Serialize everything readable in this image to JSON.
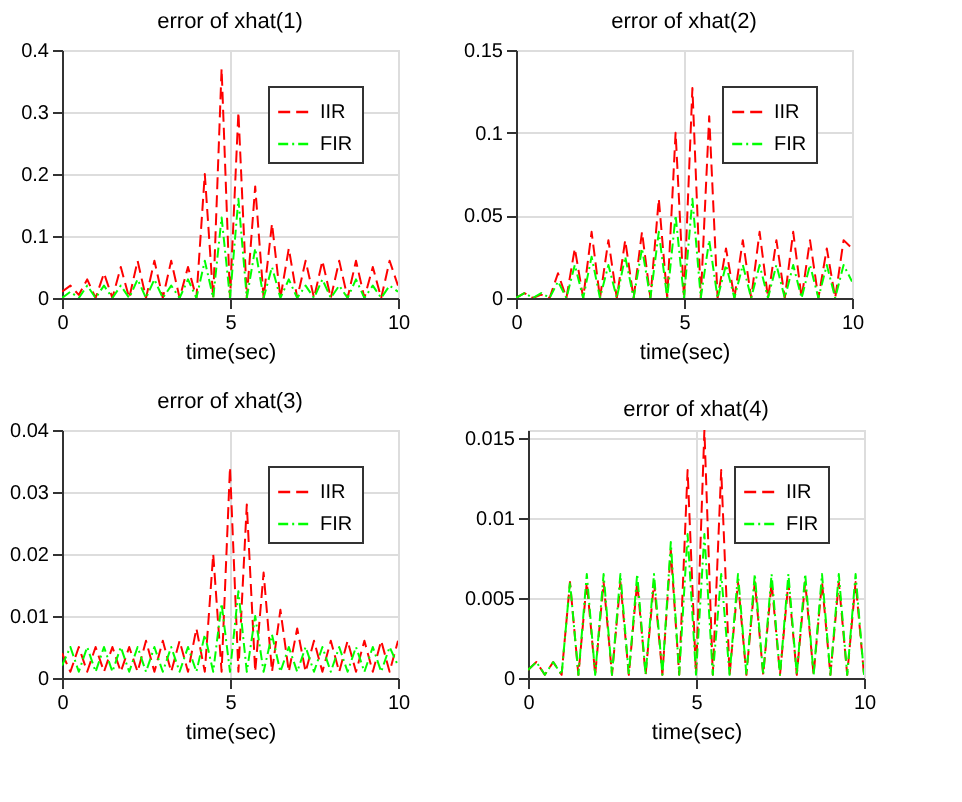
{
  "chart_data": [
    {
      "type": "line",
      "title": "error of xhat(1)",
      "xlabel": "time(sec)",
      "xlim": [
        0,
        10
      ],
      "xticks": [
        0,
        5,
        10
      ],
      "ylim": [
        0,
        0.4
      ],
      "yticks": [
        0,
        0.1,
        0.2,
        0.3,
        0.4
      ],
      "grid": true,
      "legend": "top right",
      "x": [
        0,
        0.25,
        0.5,
        0.75,
        1,
        1.25,
        1.5,
        1.75,
        2,
        2.25,
        2.5,
        2.75,
        3,
        3.25,
        3.5,
        3.75,
        4,
        4.25,
        4.5,
        4.75,
        5,
        5.25,
        5.5,
        5.75,
        6,
        6.25,
        6.5,
        6.75,
        7,
        7.25,
        7.5,
        7.75,
        8,
        8.25,
        8.5,
        8.75,
        9,
        9.25,
        9.5,
        9.75,
        10
      ],
      "series": [
        {
          "name": "IIR",
          "color": "#ff0000",
          "line_style": "dashed",
          "values": [
            0.01,
            0.02,
            0.005,
            0.03,
            0,
            0.04,
            0,
            0.05,
            0,
            0.06,
            0,
            0.06,
            0,
            0.06,
            0,
            0.05,
            0,
            0.2,
            0,
            0.37,
            0,
            0.3,
            0,
            0.18,
            0,
            0.12,
            0,
            0.08,
            0,
            0.06,
            0,
            0.06,
            0,
            0.06,
            0,
            0.06,
            0,
            0.05,
            0,
            0.06,
            0.02
          ]
        },
        {
          "name": "FIR",
          "color": "#00ff00",
          "line_style": "dotted",
          "values": [
            0,
            0.01,
            0,
            0.02,
            0,
            0.02,
            0,
            0.02,
            0,
            0.03,
            0,
            0.03,
            0,
            0.02,
            0,
            0.03,
            0,
            0.06,
            0,
            0.13,
            0,
            0.16,
            0,
            0.08,
            0,
            0.05,
            0,
            0.03,
            0,
            0.02,
            0,
            0.03,
            0,
            0.02,
            0,
            0.03,
            0,
            0.02,
            0,
            0.02,
            0.01
          ]
        }
      ]
    },
    {
      "type": "line",
      "title": "error of xhat(2)",
      "xlabel": "time(sec)",
      "xlim": [
        0,
        10
      ],
      "xticks": [
        0,
        5,
        10
      ],
      "ylim": [
        0,
        0.15
      ],
      "yticks": [
        0,
        0.05,
        0.1,
        0.15
      ],
      "grid": true,
      "legend": "top right",
      "x": [
        0,
        0.25,
        0.5,
        0.75,
        1,
        1.25,
        1.5,
        1.75,
        2,
        2.25,
        2.5,
        2.75,
        3,
        3.25,
        3.5,
        3.75,
        4,
        4.25,
        4.5,
        4.75,
        5,
        5.25,
        5.5,
        5.75,
        6,
        6.25,
        6.5,
        6.75,
        7,
        7.25,
        7.5,
        7.75,
        8,
        8.25,
        8.5,
        8.75,
        9,
        9.25,
        9.5,
        9.75,
        10
      ],
      "series": [
        {
          "name": "IIR",
          "color": "#ff0000",
          "line_style": "dashed",
          "values": [
            0,
            0.003,
            0,
            0.002,
            0,
            0.015,
            0,
            0.03,
            0,
            0.04,
            0,
            0.035,
            0,
            0.035,
            0,
            0.04,
            0,
            0.06,
            0,
            0.1,
            0,
            0.127,
            0,
            0.11,
            0,
            0.03,
            0,
            0.035,
            0,
            0.04,
            0,
            0.035,
            0,
            0.04,
            0,
            0.035,
            0,
            0.03,
            0,
            0.035,
            0.03
          ]
        },
        {
          "name": "FIR",
          "color": "#00ff00",
          "line_style": "dotted",
          "values": [
            0,
            0.003,
            0,
            0.003,
            0,
            0.01,
            0,
            0.02,
            0,
            0.025,
            0,
            0.02,
            0,
            0.025,
            0,
            0.03,
            0,
            0.04,
            0,
            0.05,
            0,
            0.06,
            0,
            0.035,
            0,
            0.02,
            0,
            0.02,
            0,
            0.02,
            0,
            0.02,
            0,
            0.02,
            0,
            0.02,
            0,
            0.02,
            0,
            0.02,
            0.01
          ]
        }
      ]
    },
    {
      "type": "line",
      "title": "error of xhat(3)",
      "xlabel": "time(sec)",
      "xlim": [
        0,
        10
      ],
      "xticks": [
        0,
        5,
        10
      ],
      "ylim": [
        0,
        0.04
      ],
      "yticks": [
        0,
        0.01,
        0.02,
        0.03,
        0.04
      ],
      "grid": true,
      "legend": "top right",
      "x": [
        0,
        0.25,
        0.5,
        0.75,
        1,
        1.25,
        1.5,
        1.75,
        2,
        2.25,
        2.5,
        2.75,
        3,
        3.25,
        3.5,
        3.75,
        4,
        4.25,
        4.5,
        4.75,
        5,
        5.25,
        5.5,
        5.75,
        6,
        6.25,
        6.5,
        6.75,
        7,
        7.25,
        7.5,
        7.75,
        8,
        8.25,
        8.5,
        8.75,
        9,
        9.25,
        9.5,
        9.75,
        10
      ],
      "series": [
        {
          "name": "IIR",
          "color": "#ff0000",
          "line_style": "dashed",
          "values": [
            0.004,
            0.001,
            0.005,
            0.001,
            0.005,
            0.001,
            0.005,
            0.001,
            0.005,
            0.001,
            0.006,
            0.001,
            0.006,
            0.001,
            0.006,
            0.001,
            0.008,
            0.001,
            0.02,
            0.001,
            0.034,
            0.001,
            0.028,
            0.001,
            0.017,
            0.001,
            0.011,
            0.001,
            0.008,
            0.001,
            0.006,
            0.001,
            0.006,
            0.001,
            0.006,
            0.001,
            0.006,
            0.001,
            0.006,
            0.001,
            0.006
          ]
        },
        {
          "name": "FIR",
          "color": "#00ff00",
          "line_style": "dotted",
          "values": [
            0.002,
            0.005,
            0.001,
            0.005,
            0.001,
            0.005,
            0.001,
            0.005,
            0.001,
            0.005,
            0.001,
            0.005,
            0.001,
            0.005,
            0.001,
            0.005,
            0.001,
            0.007,
            0.001,
            0.012,
            0.001,
            0.014,
            0.001,
            0.01,
            0.001,
            0.007,
            0.001,
            0.005,
            0.001,
            0.005,
            0.001,
            0.005,
            0.001,
            0.005,
            0.001,
            0.005,
            0.001,
            0.005,
            0.001,
            0.005,
            0.002
          ]
        }
      ]
    },
    {
      "type": "line",
      "title": "error of xhat(4)",
      "xlabel": "time(sec)",
      "xlim": [
        0,
        10
      ],
      "xticks": [
        0,
        5,
        10
      ],
      "ylim": [
        0,
        0.0155
      ],
      "yticks": [
        0,
        0.005,
        0.01,
        0.015
      ],
      "grid": true,
      "legend": "top right",
      "x": [
        0,
        0.25,
        0.5,
        0.75,
        1,
        1.25,
        1.5,
        1.75,
        2,
        2.25,
        2.5,
        2.75,
        3,
        3.25,
        3.5,
        3.75,
        4,
        4.25,
        4.5,
        4.75,
        5,
        5.25,
        5.5,
        5.75,
        6,
        6.25,
        6.5,
        6.75,
        7,
        7.25,
        7.5,
        7.75,
        8,
        8.25,
        8.5,
        8.75,
        9,
        9.25,
        9.5,
        9.75,
        10
      ],
      "series": [
        {
          "name": "IIR",
          "color": "#ff0000",
          "line_style": "dashed",
          "values": [
            0.0005,
            0.001,
            0.0002,
            0.001,
            0.0002,
            0.006,
            0.0002,
            0.006,
            0.0002,
            0.006,
            0.0002,
            0.006,
            0.0002,
            0.006,
            0.0002,
            0.006,
            0.0002,
            0.008,
            0.0002,
            0.013,
            0.0002,
            0.0155,
            0.0002,
            0.013,
            0.0002,
            0.006,
            0.0002,
            0.006,
            0.0002,
            0.006,
            0.0002,
            0.006,
            0.0002,
            0.006,
            0.0002,
            0.006,
            0.0002,
            0.006,
            0.0002,
            0.006,
            0.0002
          ]
        },
        {
          "name": "FIR",
          "color": "#00ff00",
          "line_style": "dotted",
          "values": [
            0.0005,
            0.001,
            0.0002,
            0.001,
            0.0002,
            0.006,
            0.0002,
            0.0065,
            0.0002,
            0.0065,
            0.0002,
            0.0065,
            0.0002,
            0.0065,
            0.0002,
            0.0065,
            0.0002,
            0.0085,
            0.0002,
            0.009,
            0.0002,
            0.009,
            0.0002,
            0.0065,
            0.0002,
            0.0065,
            0.0002,
            0.0065,
            0.0002,
            0.0065,
            0.0002,
            0.0065,
            0.0002,
            0.0065,
            0.0002,
            0.0065,
            0.0002,
            0.0065,
            0.0002,
            0.0065,
            0.0002
          ]
        }
      ]
    }
  ]
}
